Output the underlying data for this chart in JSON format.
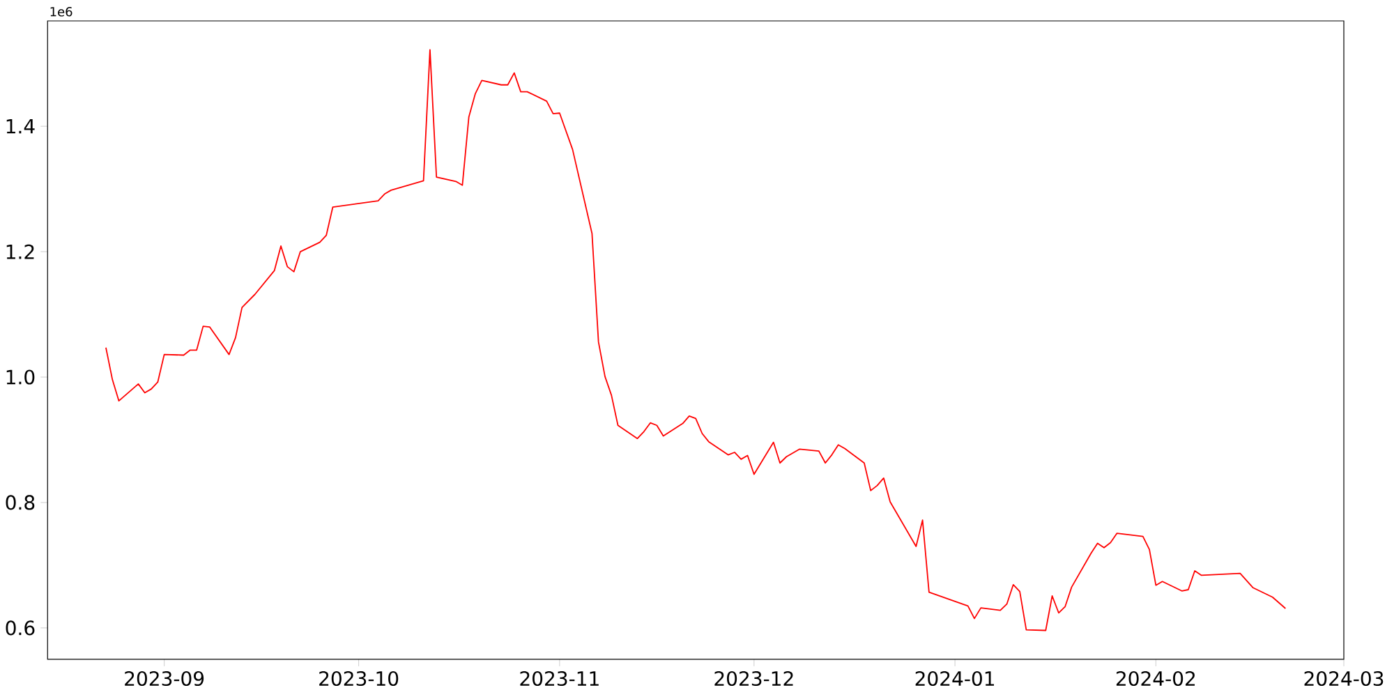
{
  "chart_data": {
    "type": "line",
    "annotations": [
      "1e6"
    ],
    "x": [
      "2023-08-23",
      "2023-08-24",
      "2023-08-25",
      "2023-08-28",
      "2023-08-29",
      "2023-08-30",
      "2023-08-31",
      "2023-09-01",
      "2023-09-04",
      "2023-09-05",
      "2023-09-06",
      "2023-09-07",
      "2023-09-08",
      "2023-09-11",
      "2023-09-12",
      "2023-09-13",
      "2023-09-15",
      "2023-09-18",
      "2023-09-19",
      "2023-09-20",
      "2023-09-21",
      "2023-09-22",
      "2023-09-25",
      "2023-09-26",
      "2023-09-27",
      "2023-10-04",
      "2023-10-05",
      "2023-10-06",
      "2023-10-11",
      "2023-10-12",
      "2023-10-13",
      "2023-10-16",
      "2023-10-17",
      "2023-10-18",
      "2023-10-19",
      "2023-10-20",
      "2023-10-23",
      "2023-10-24",
      "2023-10-25",
      "2023-10-26",
      "2023-10-27",
      "2023-10-30",
      "2023-10-31",
      "2023-11-01",
      "2023-11-03",
      "2023-11-06",
      "2023-11-07",
      "2023-11-08",
      "2023-11-09",
      "2023-11-10",
      "2023-11-13",
      "2023-11-14",
      "2023-11-15",
      "2023-11-16",
      "2023-11-17",
      "2023-11-20",
      "2023-11-21",
      "2023-11-22",
      "2023-11-23",
      "2023-11-24",
      "2023-11-27",
      "2023-11-28",
      "2023-11-29",
      "2023-11-30",
      "2023-12-01",
      "2023-12-04",
      "2023-12-05",
      "2023-12-06",
      "2023-12-08",
      "2023-12-11",
      "2023-12-12",
      "2023-12-13",
      "2023-12-14",
      "2023-12-15",
      "2023-12-18",
      "2023-12-19",
      "2023-12-20",
      "2023-12-21",
      "2023-12-22",
      "2023-12-26",
      "2023-12-27",
      "2023-12-28",
      "2024-01-03",
      "2024-01-04",
      "2024-01-05",
      "2024-01-08",
      "2024-01-09",
      "2024-01-10",
      "2024-01-11",
      "2024-01-12",
      "2024-01-15",
      "2024-01-16",
      "2024-01-17",
      "2024-01-18",
      "2024-01-19",
      "2024-01-22",
      "2024-01-23",
      "2024-01-24",
      "2024-01-25",
      "2024-01-26",
      "2024-01-30",
      "2024-01-31",
      "2024-02-01",
      "2024-02-02",
      "2024-02-05",
      "2024-02-06",
      "2024-02-07",
      "2024-02-08",
      "2024-02-14",
      "2024-02-16",
      "2024-02-19",
      "2024-02-21"
    ],
    "series": [
      {
        "color": "#ff0000",
        "values": [
          1.047,
          0.996,
          0.962,
          0.989,
          0.975,
          0.981,
          0.992,
          1.036,
          1.035,
          1.043,
          1.043,
          1.081,
          1.08,
          1.036,
          1.063,
          1.111,
          1.132,
          1.17,
          1.209,
          1.176,
          1.168,
          1.2,
          1.215,
          1.226,
          1.271,
          1.281,
          1.292,
          1.298,
          1.313,
          1.522,
          1.319,
          1.312,
          1.306,
          1.415,
          1.452,
          1.473,
          1.466,
          1.466,
          1.485,
          1.455,
          1.455,
          1.44,
          1.42,
          1.421,
          1.363,
          1.229,
          1.056,
          1.001,
          0.971,
          0.923,
          0.902,
          0.913,
          0.927,
          0.923,
          0.906,
          0.926,
          0.938,
          0.934,
          0.91,
          0.897,
          0.876,
          0.88,
          0.869,
          0.875,
          0.845,
          0.896,
          0.863,
          0.873,
          0.885,
          0.882,
          0.863,
          0.876,
          0.892,
          0.886,
          0.863,
          0.819,
          0.827,
          0.839,
          0.801,
          0.73,
          0.772,
          0.657,
          0.635,
          0.615,
          0.632,
          0.628,
          0.638,
          0.669,
          0.658,
          0.597,
          0.596,
          0.651,
          0.624,
          0.634,
          0.665,
          0.719,
          0.735,
          0.728,
          0.736,
          0.751,
          0.746,
          0.725,
          0.668,
          0.674,
          0.659,
          0.661,
          0.691,
          0.684,
          0.687,
          0.664,
          0.649,
          0.631
        ]
      }
    ],
    "xlim": [
      "2023-08-14",
      "2024-03-01"
    ],
    "xticks": [
      {
        "value": "2023-09-01",
        "label": "2023-09"
      },
      {
        "value": "2023-10-01",
        "label": "2023-10"
      },
      {
        "value": "2023-11-01",
        "label": "2023-11"
      },
      {
        "value": "2023-12-01",
        "label": "2023-12"
      },
      {
        "value": "2024-01-01",
        "label": "2024-01"
      },
      {
        "value": "2024-02-01",
        "label": "2024-02"
      },
      {
        "value": "2024-03-01",
        "label": "2024-03"
      }
    ],
    "ylim": [
      0.55,
      1.568
    ],
    "yticks": [
      0.6,
      0.8,
      {
        "value": 1.0,
        "label": "1.0"
      },
      1.2,
      1.4
    ],
    "grid": false,
    "marker": "none",
    "line_style": "solid"
  }
}
